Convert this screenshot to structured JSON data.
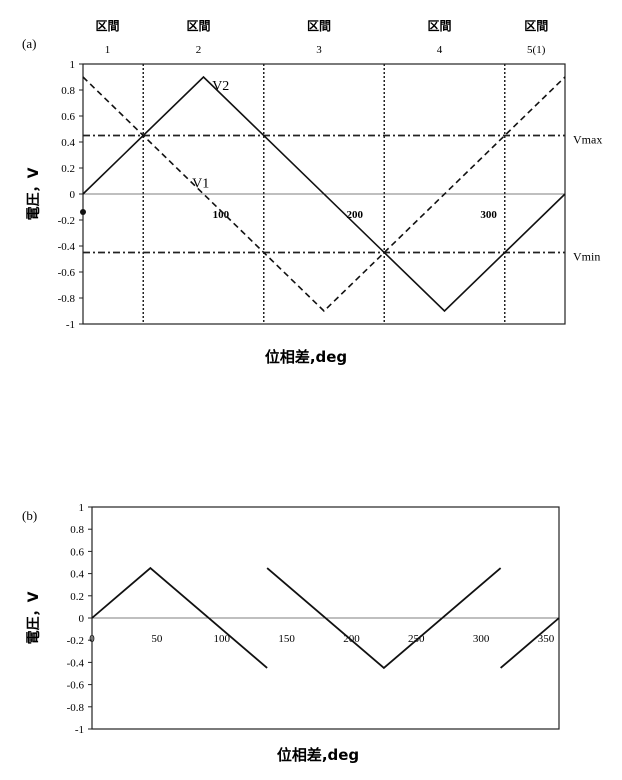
{
  "chart_data": [
    {
      "panel_label": "(a)",
      "type": "line",
      "xlabel": "位相差,deg",
      "ylabel": "電圧，V",
      "xlim": [
        0,
        360
      ],
      "ylim": [
        -1,
        1
      ],
      "x_ticks": [
        100,
        200,
        300
      ],
      "y_ticks": [
        "1",
        "0.8",
        "0.6",
        "0.4",
        "0.2",
        "0",
        "-0.2",
        "-0.4",
        "-0.6",
        "-0.8",
        "-1"
      ],
      "grid": false,
      "sections": [
        {
          "label": "区間",
          "num": "1",
          "x": 0
        },
        {
          "label": "区間",
          "num": "2",
          "x": 45
        },
        {
          "label": "区間",
          "num": "3",
          "x": 135
        },
        {
          "label": "区間",
          "num": "4",
          "x": 225
        },
        {
          "label": "区間",
          "num": "5(1)",
          "x": 315
        }
      ],
      "boundaries": [
        45,
        135,
        225,
        315
      ],
      "thresholds": [
        {
          "name": "Vmax",
          "y": 0.45
        },
        {
          "name": "Vmin",
          "y": -0.45
        }
      ],
      "series": [
        {
          "name": "V1",
          "style": "dashed",
          "points": [
            [
              0,
              0.9
            ],
            [
              180,
              -0.9
            ],
            [
              360,
              0.9
            ]
          ]
        },
        {
          "name": "V2",
          "style": "solid",
          "points": [
            [
              0,
              0
            ],
            [
              90,
              0.9
            ],
            [
              270,
              -0.9
            ],
            [
              360,
              0
            ]
          ]
        }
      ]
    },
    {
      "panel_label": "(b)",
      "type": "line",
      "xlabel": "位相差,deg",
      "ylabel": "電圧，V",
      "xlim": [
        0,
        360
      ],
      "ylim": [
        -1,
        1
      ],
      "x_ticks": [
        0,
        50,
        100,
        150,
        200,
        250,
        300,
        350
      ],
      "y_ticks": [
        "1",
        "0.8",
        "0.6",
        "0.4",
        "0.2",
        "0",
        "-0.2",
        "-0.4",
        "-0.6",
        "-0.8",
        "-1"
      ],
      "grid": false,
      "segments": [
        [
          [
            0,
            0
          ],
          [
            45,
            0.45
          ],
          [
            135,
            -0.45
          ]
        ],
        [
          [
            135,
            0.45
          ],
          [
            225,
            -0.45
          ],
          [
            315,
            0.45
          ]
        ],
        [
          [
            315,
            -0.45
          ],
          [
            360,
            0
          ]
        ]
      ]
    }
  ]
}
